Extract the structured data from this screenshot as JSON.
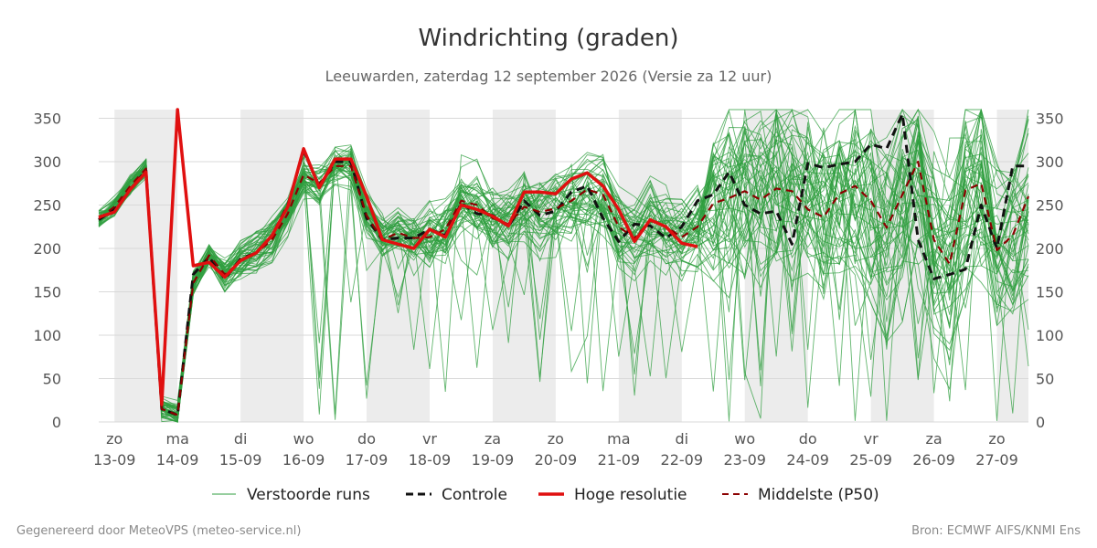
{
  "chart_data": {
    "type": "line",
    "title": "Windrichting (graden)",
    "subtitle": "Leeuwarden, zaterdag 12 september 2026 (Versie za 12 uur)",
    "ylim": [
      0,
      360
    ],
    "y_ticks": [
      0,
      50,
      100,
      150,
      200,
      250,
      300,
      350
    ],
    "x_range_days": [
      0,
      15
    ],
    "x_ticks": [
      {
        "day": "zo",
        "date": "13-09"
      },
      {
        "day": "ma",
        "date": "14-09"
      },
      {
        "day": "di",
        "date": "15-09"
      },
      {
        "day": "wo",
        "date": "16-09"
      },
      {
        "day": "do",
        "date": "17-09"
      },
      {
        "day": "vr",
        "date": "18-09"
      },
      {
        "day": "za",
        "date": "19-09"
      },
      {
        "day": "zo",
        "date": "20-09"
      },
      {
        "day": "ma",
        "date": "21-09"
      },
      {
        "day": "di",
        "date": "22-09"
      },
      {
        "day": "wo",
        "date": "23-09"
      },
      {
        "day": "do",
        "date": "24-09"
      },
      {
        "day": "vr",
        "date": "25-09"
      },
      {
        "day": "za",
        "date": "26-09"
      },
      {
        "day": "zo",
        "date": "27-09"
      }
    ],
    "night_bands": [
      [
        0,
        1
      ],
      [
        2,
        3
      ],
      [
        4,
        5
      ],
      [
        6,
        7
      ],
      [
        8,
        9
      ],
      [
        10,
        11
      ],
      [
        12,
        13
      ],
      [
        14,
        14.5
      ]
    ],
    "grid": true,
    "legend_position": "bottom",
    "colors": {
      "ensemble": "#2e9e3e",
      "controle": "#111111",
      "hoge_resolutie": "#e01010",
      "middelste": "#8b0000",
      "band": "#ececec",
      "grid": "#d9d9d9"
    },
    "series": [
      {
        "name": "Controle",
        "style": "dashed",
        "x": [
          -0.25,
          0,
          0.25,
          0.5,
          0.75,
          1.0,
          1.25,
          1.5,
          1.75,
          2.0,
          2.25,
          2.5,
          2.75,
          3.0,
          3.25,
          3.5,
          3.75,
          4.0,
          4.25,
          4.5,
          4.75,
          5.0,
          5.25,
          5.5,
          5.75,
          6.0,
          6.25,
          6.5,
          6.75,
          7.0,
          7.25,
          7.5,
          7.75,
          8.0,
          8.25,
          8.5,
          8.75,
          9.0,
          9.25,
          9.5,
          9.75,
          10.0,
          10.25,
          10.5,
          10.75,
          11.0,
          11.25,
          11.5,
          11.75,
          12.0,
          12.25,
          12.5,
          12.75,
          13.0,
          13.25,
          13.5,
          13.75,
          14.0,
          14.25,
          14.5
        ],
        "y": [
          233,
          245,
          268,
          290,
          15,
          8,
          170,
          190,
          165,
          188,
          195,
          215,
          250,
          312,
          272,
          300,
          300,
          235,
          210,
          212,
          212,
          222,
          215,
          252,
          240,
          238,
          225,
          255,
          238,
          243,
          265,
          272,
          235,
          208,
          228,
          226,
          212,
          225,
          255,
          262,
          288,
          250,
          240,
          243,
          205,
          298,
          293,
          297,
          300,
          320,
          315,
          355,
          210,
          165,
          170,
          176,
          250,
          200,
          295,
          295
        ]
      },
      {
        "name": "Hoge resolutie",
        "style": "solid",
        "x": [
          -0.25,
          0,
          0.25,
          0.5,
          0.75,
          1.0,
          1.25,
          1.5,
          1.75,
          2.0,
          2.25,
          2.5,
          2.75,
          3.0,
          3.25,
          3.5,
          3.75,
          4.0,
          4.25,
          4.5,
          4.75,
          5.0,
          5.25,
          5.5,
          5.75,
          6.0,
          6.25,
          6.5,
          6.75,
          7.0,
          7.25,
          7.5,
          7.75,
          8.0,
          8.25,
          8.5,
          8.75,
          9.0,
          9.25
        ],
        "y": [
          236,
          242,
          268,
          288,
          20,
          360,
          180,
          184,
          167,
          186,
          195,
          215,
          248,
          315,
          270,
          303,
          303,
          260,
          210,
          205,
          200,
          222,
          213,
          250,
          245,
          237,
          226,
          265,
          265,
          263,
          280,
          287,
          272,
          245,
          208,
          233,
          225,
          206,
          202
        ]
      },
      {
        "name": "Middelste (P50)",
        "style": "dashed",
        "x": [
          -0.25,
          0,
          0.25,
          0.5,
          0.75,
          1.0,
          1.25,
          1.5,
          1.75,
          2.0,
          2.25,
          2.5,
          2.75,
          3.0,
          3.25,
          3.5,
          3.75,
          4.0,
          4.25,
          4.5,
          4.75,
          5.0,
          5.25,
          5.5,
          5.75,
          6.0,
          6.25,
          6.5,
          6.75,
          7.0,
          7.25,
          7.5,
          7.75,
          8.0,
          8.25,
          8.5,
          8.75,
          9.0,
          9.25,
          9.5,
          9.75,
          10.0,
          10.25,
          10.5,
          10.75,
          11.0,
          11.25,
          11.5,
          11.75,
          12.0,
          12.25,
          12.5,
          12.75,
          13.0,
          13.25,
          13.5,
          13.75,
          14.0,
          14.25,
          14.5
        ],
        "y": [
          234,
          248,
          272,
          292,
          15,
          8,
          160,
          192,
          170,
          185,
          195,
          210,
          240,
          285,
          275,
          295,
          295,
          238,
          210,
          218,
          212,
          213,
          222,
          255,
          250,
          235,
          228,
          248,
          242,
          246,
          255,
          268,
          262,
          225,
          212,
          232,
          225,
          213,
          225,
          252,
          258,
          266,
          256,
          269,
          266,
          245,
          236,
          263,
          272,
          255,
          224,
          262,
          300,
          210,
          182,
          267,
          275,
          198,
          215,
          260
        ]
      }
    ],
    "legend": [
      {
        "label": "Verstoorde runs",
        "style": "thin"
      },
      {
        "label": "Controle",
        "style": "dashed"
      },
      {
        "label": "Hoge resolutie",
        "style": "thick"
      },
      {
        "label": "Middelste (P50)",
        "style": "dashed-red"
      }
    ]
  },
  "footer": {
    "left": "Gegenereerd door MeteoVPS (meteo-service.nl)",
    "right": "Bron: ECMWF AIFS/KNMI Ens"
  }
}
